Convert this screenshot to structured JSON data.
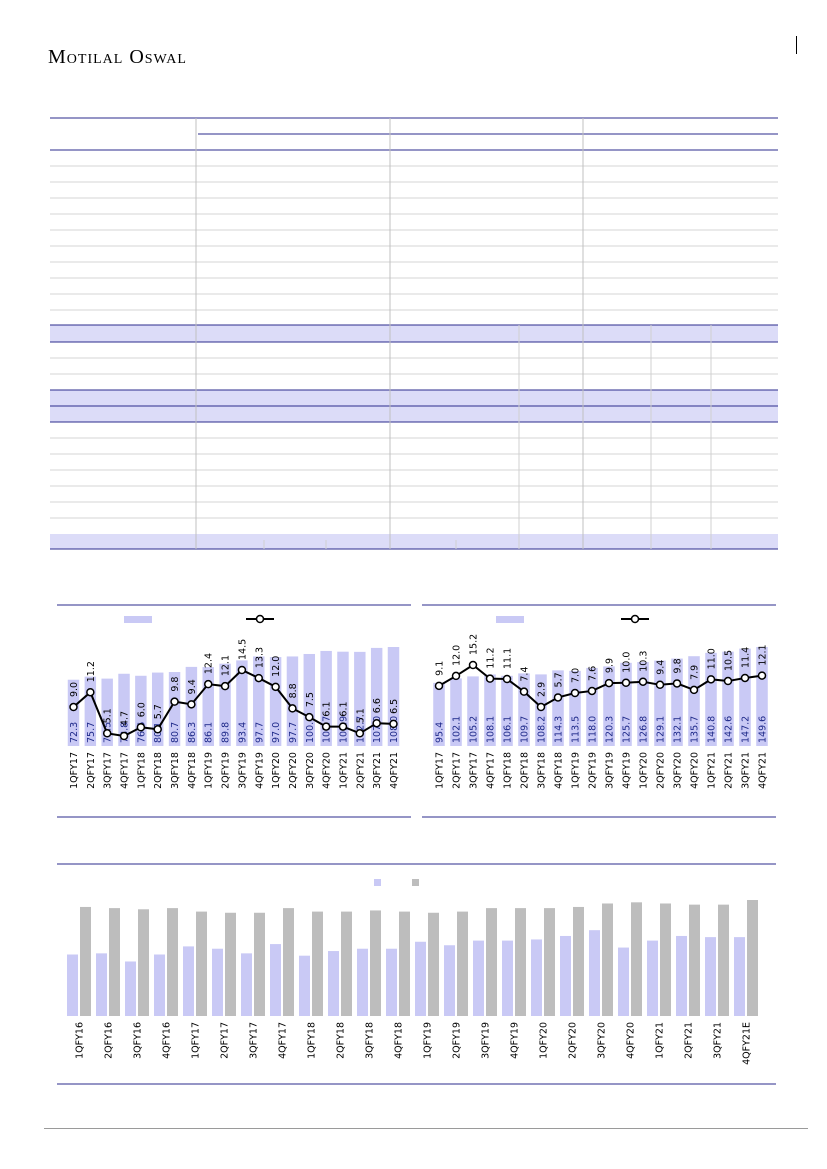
{
  "header": {
    "brand": "Motilal Oswal"
  },
  "colors": {
    "navy": "#2b2b8c",
    "band": "#dcdcf8",
    "bar": "#c9c9f5",
    "bar_grey": "#bdbdbd",
    "rule": "#c8c8c8"
  },
  "chart_data": [
    {
      "type": "bar",
      "categories": [
        "1QFY17",
        "2QFY17",
        "3QFY17",
        "4QFY17",
        "1QFY18",
        "2QFY18",
        "3QFY18",
        "4QFY18",
        "1QFY19",
        "2QFY19",
        "3QFY19",
        "4QFY19",
        "1QFY20",
        "2QFY20",
        "3QFY20",
        "4QFY20",
        "1QFY21",
        "2QFY21",
        "3QFY21",
        "4QFY21"
      ],
      "series": [
        {
          "values": [
            72.3,
            75.7,
            73.5,
            78.8,
            76.6,
            80.1,
            80.7,
            86.3,
            86.1,
            89.8,
            93.4,
            97.7,
            97.0,
            97.7,
            100.4,
            103.7,
            102.9,
            102.7,
            107.0,
            108.0
          ]
        },
        {
          "values": [
            9.0,
            11.2,
            5.1,
            4.7,
            6.0,
            5.7,
            9.8,
            9.4,
            12.4,
            12.1,
            14.5,
            13.3,
            12.0,
            8.8,
            7.5,
            6.1,
            6.1,
            5.1,
            6.6,
            6.5
          ]
        }
      ]
    },
    {
      "type": "bar",
      "categories": [
        "1QFY17",
        "2QFY17",
        "3QFY17",
        "4QFY17",
        "1QFY18",
        "2QFY18",
        "3QFY18",
        "4QFY18",
        "1QFY19",
        "2QFY19",
        "3QFY19",
        "4QFY19",
        "1QFY20",
        "2QFY20",
        "3QFY20",
        "4QFY20",
        "1QFY21",
        "2QFY21",
        "3QFY21",
        "4QFY21"
      ],
      "series": [
        {
          "values": [
            95.4,
            102.1,
            105.2,
            108.1,
            106.1,
            109.7,
            108.2,
            114.3,
            113.5,
            118.0,
            120.3,
            125.7,
            126.8,
            129.1,
            132.1,
            135.7,
            140.8,
            142.6,
            147.2,
            149.6
          ]
        },
        {
          "values": [
            9.1,
            12.0,
            15.2,
            11.2,
            11.1,
            7.4,
            2.9,
            5.7,
            7.0,
            7.6,
            9.9,
            10.0,
            10.3,
            9.4,
            9.8,
            7.9,
            11.0,
            10.5,
            11.4,
            12.1
          ]
        }
      ]
    },
    {
      "type": "bar",
      "categories": [
        "1QFY16",
        "2QFY16",
        "3QFY16",
        "4QFY16",
        "1QFY17",
        "2QFY17",
        "3QFY17",
        "4QFY17",
        "1QFY18",
        "2QFY18",
        "3QFY18",
        "4QFY18",
        "1QFY19",
        "2QFY19",
        "3QFY19",
        "4QFY19",
        "1QFY20",
        "2QFY20",
        "3QFY20",
        "4QFY20",
        "1QFY21",
        "2QFY21",
        "3QFY21",
        "4QFY21E"
      ],
      "series": [
        {
          "values": [
            0.53,
            0.54,
            0.47,
            0.53,
            0.6,
            0.58,
            0.54,
            0.62,
            0.52,
            0.56,
            0.58,
            0.58,
            0.64,
            0.61,
            0.65,
            0.65,
            0.66,
            0.69,
            0.74,
            0.59,
            0.65,
            0.69,
            0.68,
            0.68
          ]
        },
        {
          "values": [
            0.94,
            0.93,
            0.92,
            0.93,
            0.9,
            0.89,
            0.89,
            0.93,
            0.9,
            0.9,
            0.91,
            0.9,
            0.89,
            0.9,
            0.93,
            0.93,
            0.93,
            0.94,
            0.97,
            0.98,
            0.97,
            0.96,
            0.96,
            1.0
          ]
        }
      ]
    }
  ]
}
